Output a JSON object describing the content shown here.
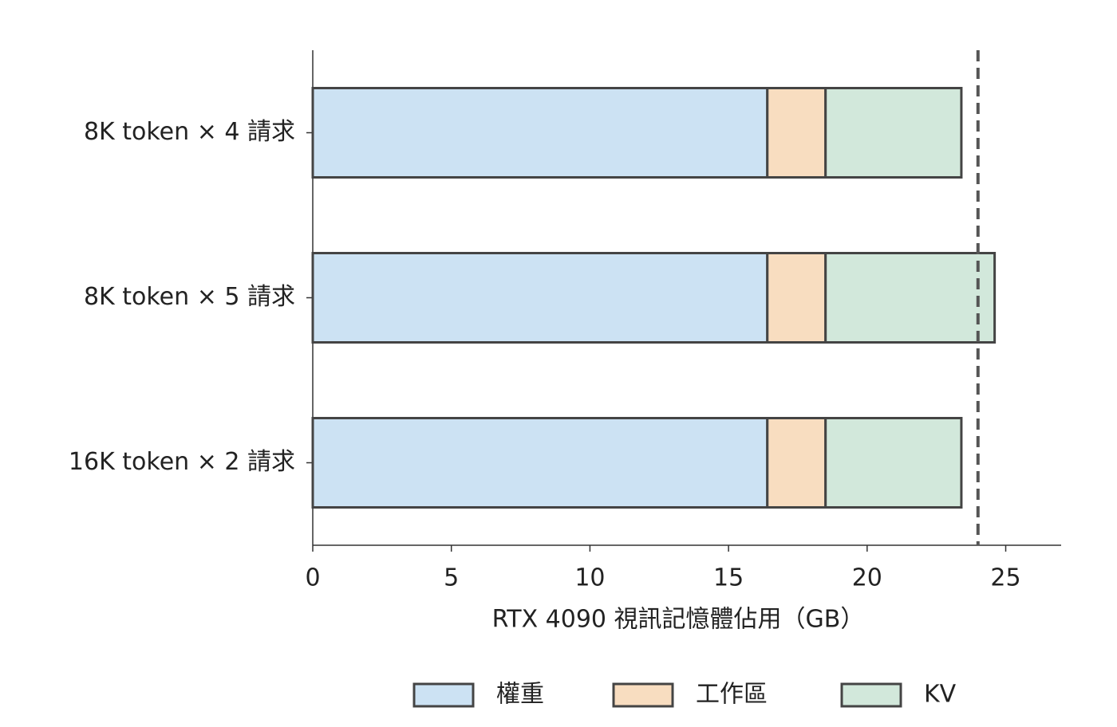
{
  "chart_data": {
    "type": "stacked_barh",
    "categories": [
      "8K token × 4 請求",
      "8K token × 5 請求",
      "16K token × 2 請求"
    ],
    "series": [
      {
        "name": "權重",
        "color": "#cce2f3",
        "values": [
          16.4,
          16.4,
          16.4
        ]
      },
      {
        "name": "工作區",
        "color": "#f8ddc0",
        "values": [
          2.1,
          2.1,
          2.1
        ]
      },
      {
        "name": "KV",
        "color": "#d2e8db",
        "values": [
          4.9,
          6.1,
          4.9
        ]
      }
    ],
    "xlabel": "RTX 4090 視訊記憶體佔用（GB）",
    "xlim": [
      0,
      27
    ],
    "xticks": [
      0,
      5,
      10,
      15,
      20,
      25
    ],
    "reference_line": 24,
    "legend": "bottom"
  }
}
